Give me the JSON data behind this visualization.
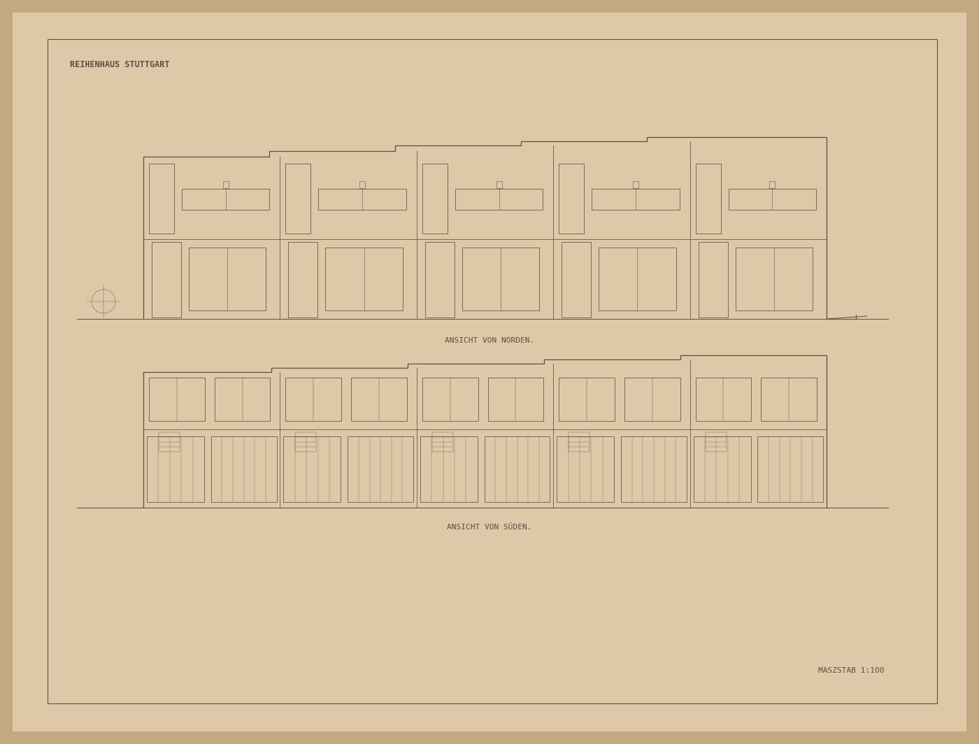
{
  "outer_bg": "#c4a882",
  "paper_color": "#dfc8a8",
  "inner_paper_color": "#dfc8a8",
  "border_color": "#5a5040",
  "line_color": "#5a5040",
  "title_text": "REIHENHAUS STUTTGART",
  "label_north": "ANSICHT VON NORDEN.",
  "label_south": "ANSICHT VON SÜDEN.",
  "scale_text": "MASZSTAB 1:100",
  "lw_main": 0.9,
  "lw_thin": 0.55,
  "lw_border": 0.8
}
